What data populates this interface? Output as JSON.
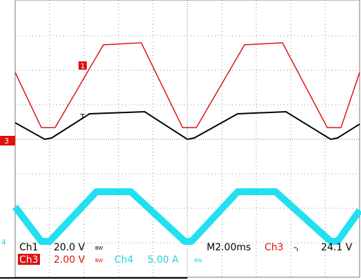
{
  "markers": {
    "trigger": "T",
    "ch1": "1",
    "ch3": "3",
    "ch4": "4"
  },
  "readout": {
    "row1": {
      "channel": "Ch1",
      "scale": "20.0 V",
      "bw": "BW",
      "timebase": "M2.00ms",
      "trigger_source": "Ch3",
      "trigger_level": "24.1 V"
    },
    "row2": {
      "channel": "Ch3",
      "scale": "2.00 V",
      "bw": "BW",
      "channel2": "Ch4",
      "scale2": "5.00 A",
      "bw2": "BW"
    }
  }
}
